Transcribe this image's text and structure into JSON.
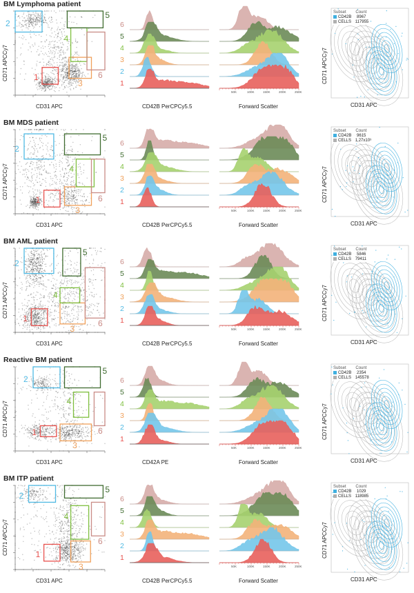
{
  "colors": {
    "gate1": "#e8514d",
    "gate2": "#4fb9e3",
    "gate3": "#f0a05a",
    "gate4": "#7fbf3f",
    "gate5": "#3f6b2f",
    "gate6": "#c98b86",
    "hist1": "#e8605c",
    "hist2": "#74c6ea",
    "hist3": "#f3b27a",
    "hist4": "#a6d16f",
    "hist5": "#6c8b58",
    "hist6": "#d6aca8",
    "contour_subset": "#3fb0e0",
    "contour_cells": "#b0b0b0"
  },
  "gate_labels": [
    "1",
    "2",
    "3",
    "4",
    "5",
    "6"
  ],
  "axis_labels": {
    "cd71": "CD71 APCCy7",
    "cd31": "CD31 APC",
    "fsc": "Forward Scatter"
  },
  "fsc_ticks": [
    "50K",
    "100K",
    "150K",
    "200K",
    "250K"
  ],
  "legend_headers": {
    "subset": "Subset",
    "count": "Count"
  },
  "panels": [
    {
      "title": "BM Lymphoma patient",
      "hist_xlabel": "CD42B PerCPCy5.5",
      "subset_name": "CD42B",
      "subset_count": "8967",
      "cells_name": "CELLS",
      "cells_count": "117955"
    },
    {
      "title": "BM MDS patient",
      "hist_xlabel": "CD42B PerCPCy5.5",
      "subset_name": "CD42B",
      "subset_count": "9615",
      "cells_name": "CELLS",
      "cells_count": "1,27x10⁵"
    },
    {
      "title": "BM AML patient",
      "hist_xlabel": "CD42B PerCPCy5.5",
      "subset_name": "CD42B",
      "subset_count": "5846",
      "cells_name": "CELLS",
      "cells_count": "79411"
    },
    {
      "title": "Reactive BM patient",
      "hist_xlabel": "CD42A PE",
      "subset_name": "CD42B",
      "subset_count": "2354",
      "cells_name": "CELLS",
      "cells_count": "145578"
    },
    {
      "title": "BM ITP patient",
      "hist_xlabel": "CD42B PerCPCy5.5",
      "subset_name": "CD42B",
      "subset_count": "1029",
      "cells_name": "CELLS",
      "cells_count": "118985"
    }
  ],
  "chart_data": {
    "type": "scatter",
    "description_series": [
      "gated dot plots CD31 vs CD71",
      "CD42 histograms per gate",
      "forward scatter histograms per gate",
      "contour overlays CD42B vs all cells"
    ],
    "gates": [
      "1",
      "2",
      "3",
      "4",
      "5",
      "6"
    ],
    "x_axis_dot": "CD31 APC",
    "y_axis_dot": "CD71 APCCy7",
    "x_axis_fsc": "Forward Scatter",
    "fsc_ticks": [
      "50K",
      "100K",
      "150K",
      "200K",
      "250K"
    ],
    "subset_counts": [
      8967,
      9615,
      5846,
      2354,
      1029
    ],
    "total_cell_counts": [
      117955,
      127000,
      79411,
      145578,
      118985
    ]
  }
}
